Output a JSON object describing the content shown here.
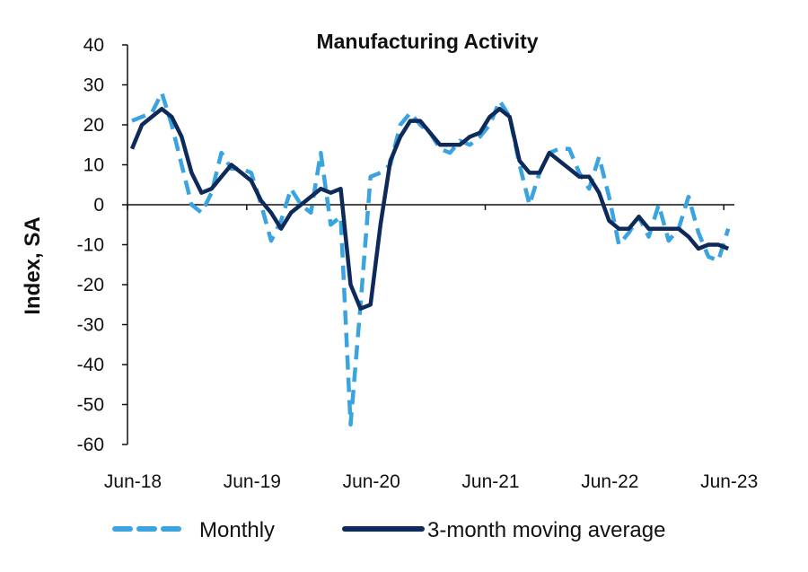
{
  "chart_data": {
    "type": "line",
    "title": "Manufacturing Activity",
    "xlabel": "",
    "ylabel": "Index, SA",
    "ylim": [
      -60,
      40
    ],
    "yticks": [
      40,
      30,
      20,
      10,
      0,
      -10,
      -20,
      -30,
      -40,
      -50,
      -60
    ],
    "xticks": [
      "Jun-18",
      "Jun-19",
      "Jun-20",
      "Jun-21",
      "Jun-22",
      "Jun-23"
    ],
    "x_start": "Jun-18",
    "x_end": "Jun-23",
    "grid": false,
    "legend_position": "bottom",
    "series": [
      {
        "name": "Monthly",
        "style": "dashed",
        "color": "#3aa3e0",
        "values": [
          21,
          22,
          23,
          28,
          20,
          10,
          0,
          -2,
          3,
          13,
          9,
          9,
          8,
          0,
          -9,
          -4,
          4,
          0,
          -2,
          13,
          -5,
          -3,
          -55,
          -25,
          7,
          8,
          10,
          20,
          23,
          20,
          18,
          14,
          13,
          16,
          15,
          17,
          20,
          26,
          22,
          10,
          0,
          8,
          13,
          14,
          14,
          8,
          4,
          12,
          2,
          -10,
          -7,
          -3,
          -8,
          0,
          -9,
          -6,
          2,
          -7,
          -13,
          -14,
          -6
        ]
      },
      {
        "name": "3-month moving average",
        "style": "solid",
        "color": "#0d2a5a",
        "values": [
          14,
          20,
          22,
          24,
          22,
          17,
          8,
          3,
          4,
          7,
          10,
          8,
          6,
          1,
          -2,
          -6,
          -2,
          0,
          2,
          4,
          3,
          4,
          -20,
          -26,
          -25,
          -5,
          11,
          17,
          21,
          21,
          18,
          15,
          15,
          15,
          17,
          18,
          22,
          24,
          22,
          11,
          8,
          8,
          13,
          11,
          9,
          7,
          7,
          3,
          -4,
          -6,
          -6,
          -3,
          -6,
          -6,
          -6,
          -6,
          -8,
          -11,
          -10,
          -10,
          -11
        ]
      }
    ]
  }
}
